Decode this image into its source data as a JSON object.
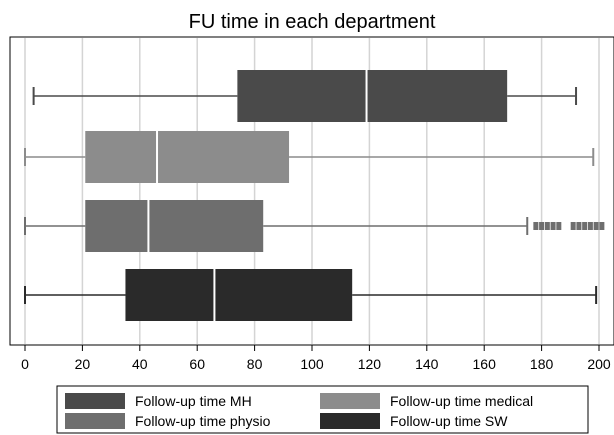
{
  "chart_data": {
    "type": "boxplot",
    "title": "FU time in each department",
    "xlim": [
      0,
      200
    ],
    "ticks": [
      0,
      20,
      40,
      60,
      80,
      100,
      120,
      140,
      160,
      180,
      200
    ],
    "tick_labels": [
      "0",
      "20",
      "40",
      "60",
      "80",
      "100",
      "120",
      "140",
      "160",
      "180",
      "200"
    ],
    "grid": "vertical",
    "legend_placement": "bottom",
    "series": [
      {
        "name": "Follow-up time MH",
        "color": "#4a4a4a",
        "whisker_low": 3,
        "q1": 74,
        "median": 119,
        "q3": 168,
        "whisker_high": 192,
        "outliers": []
      },
      {
        "name": "Follow-up time medical",
        "color": "#8c8c8c",
        "whisker_low": 0,
        "q1": 21,
        "median": 46,
        "q3": 92,
        "whisker_high": 198,
        "outliers": []
      },
      {
        "name": "Follow-up time physio",
        "color": "#6e6e6e",
        "whisker_low": 0,
        "q1": 21,
        "median": 43,
        "q3": 83,
        "whisker_high": 175,
        "outliers": [
          178,
          180,
          182,
          184,
          186,
          191,
          193,
          195,
          197,
          199,
          201
        ]
      },
      {
        "name": "Follow-up time SW",
        "color": "#2a2a2a",
        "whisker_low": 0,
        "q1": 35,
        "median": 66,
        "q3": 114,
        "whisker_high": 199,
        "outliers": []
      }
    ]
  }
}
